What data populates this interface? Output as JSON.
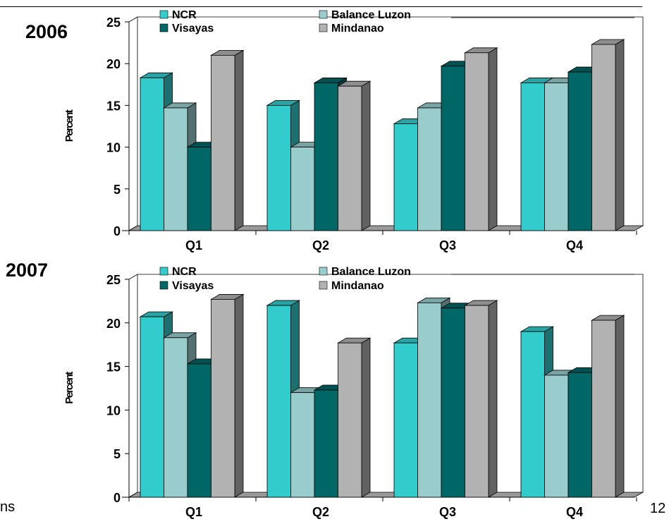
{
  "page": {
    "year_top": "2006",
    "year_bottom": "2007",
    "left_fragment": "ns",
    "page_number": "12"
  },
  "colors": {
    "NCR": "#33CCCC",
    "Balance Luzon": "#99CCCC",
    "Visayas": "#006666",
    "Mindanao": "#B2B2B2"
  },
  "chart_data": [
    {
      "type": "bar",
      "title": "2006",
      "ylabel": "Percent",
      "xlabel": "",
      "ylim": [
        0,
        25
      ],
      "yticks": [
        "0",
        "5",
        "10",
        "15",
        "20",
        "25"
      ],
      "categories": [
        "Q1",
        "Q2",
        "Q3",
        "Q4"
      ],
      "legend_position": "top",
      "grid": false,
      "series": [
        {
          "name": "NCR",
          "values": [
            18.3,
            15.0,
            12.8,
            17.7
          ]
        },
        {
          "name": "Balance Luzon",
          "values": [
            14.7,
            10.0,
            14.7,
            17.7
          ]
        },
        {
          "name": "Visayas",
          "values": [
            10.0,
            17.7,
            19.7,
            19.0
          ]
        },
        {
          "name": "Mindanao",
          "values": [
            21.0,
            17.3,
            21.3,
            22.3
          ]
        }
      ]
    },
    {
      "type": "bar",
      "title": "2007",
      "ylabel": "Percent",
      "xlabel": "",
      "ylim": [
        0,
        25
      ],
      "yticks": [
        "0",
        "5",
        "10",
        "15",
        "20",
        "25"
      ],
      "categories": [
        "Q1",
        "Q2",
        "Q3",
        "Q4"
      ],
      "legend_position": "top",
      "grid": false,
      "series": [
        {
          "name": "NCR",
          "values": [
            20.7,
            22.0,
            17.7,
            19.0
          ]
        },
        {
          "name": "Balance Luzon",
          "values": [
            18.3,
            12.0,
            22.3,
            14.0
          ]
        },
        {
          "name": "Visayas",
          "values": [
            15.3,
            12.3,
            21.7,
            14.3
          ]
        },
        {
          "name": "Mindanao",
          "values": [
            22.7,
            17.7,
            22.0,
            20.3
          ]
        }
      ]
    }
  ]
}
